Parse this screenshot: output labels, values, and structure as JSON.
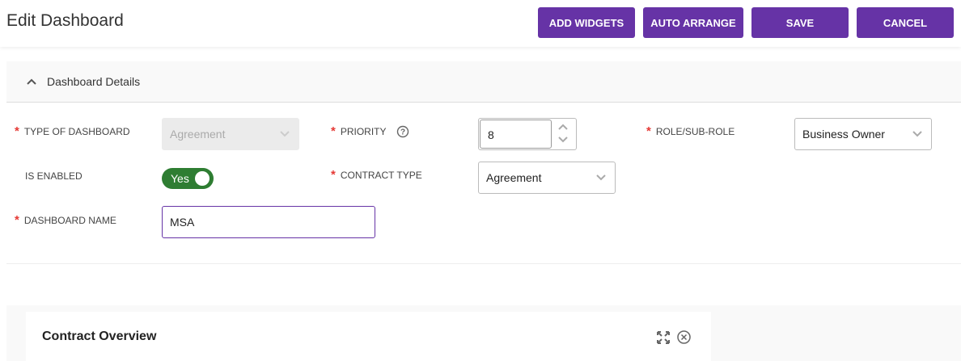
{
  "header": {
    "title": "Edit Dashboard",
    "buttons": {
      "add_widgets": "ADD WIDGETS",
      "auto_arrange": "AUTO ARRANGE",
      "save": "SAVE",
      "cancel": "CANCEL"
    }
  },
  "details": {
    "section_title": "Dashboard Details",
    "type_of_dashboard": {
      "label": "TYPE OF DASHBOARD",
      "value": "Agreement"
    },
    "priority": {
      "label": "PRIORITY",
      "value": "8"
    },
    "role": {
      "label": "ROLE/SUB-ROLE",
      "value": "Business Owner"
    },
    "is_enabled": {
      "label": "IS ENABLED",
      "value": "Yes"
    },
    "contract_type": {
      "label": "CONTRACT TYPE",
      "value": "Agreement"
    },
    "dashboard_name": {
      "label": "DASHBOARD NAME",
      "value": "MSA"
    }
  },
  "widgets": [
    {
      "title": "Contract Overview"
    }
  ],
  "colors": {
    "accent": "#6633a6",
    "toggle_on": "#2e7d32",
    "required": "#e53935"
  }
}
